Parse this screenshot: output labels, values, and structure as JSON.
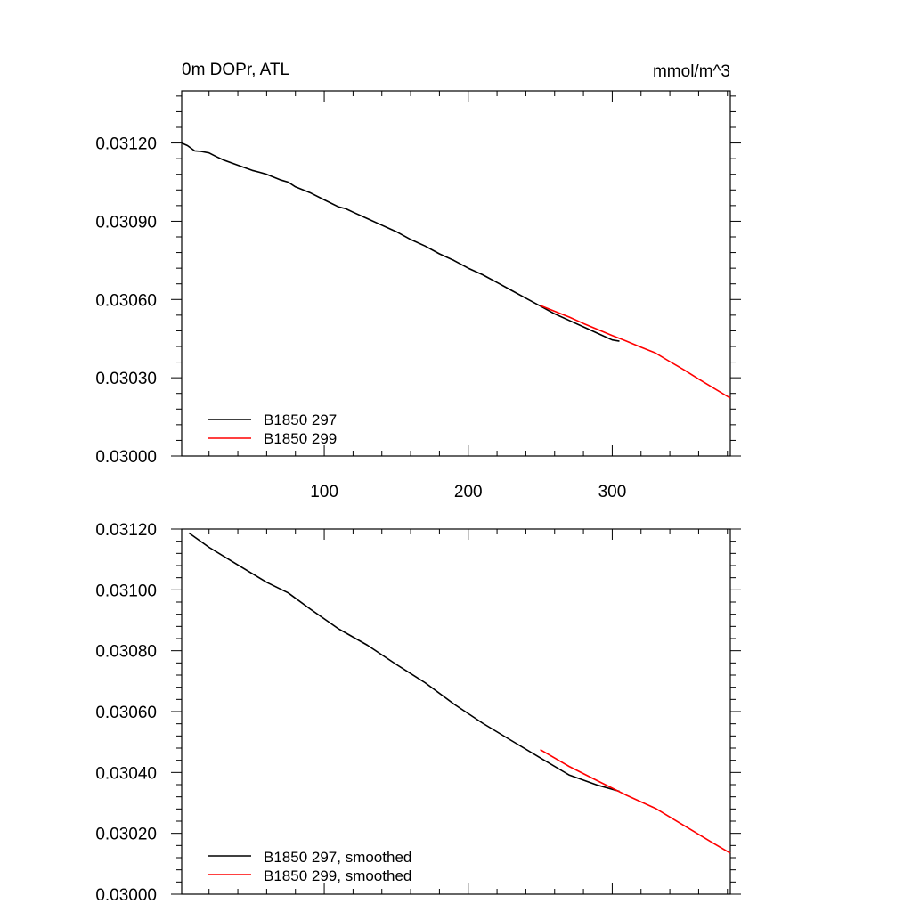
{
  "chart_data": [
    {
      "type": "line",
      "title": "0m DOPr, ATL",
      "units": "mmol/m^3",
      "xlim": [
        1,
        382
      ],
      "ylim": [
        0.03,
        0.0314
      ],
      "xticks": [
        100,
        200,
        300
      ],
      "xtick_labels": [
        "100",
        "200",
        "300"
      ],
      "yticks": [
        0.03,
        0.0303,
        0.0306,
        0.0309,
        0.0312
      ],
      "ytick_labels": [
        "0.03000",
        "0.03030",
        "0.03060",
        "0.03090",
        "0.03120"
      ],
      "grid": false,
      "legend_position": "bottom-left",
      "series": [
        {
          "name": "B1850 297",
          "color": "#000000",
          "x": [
            1,
            5,
            10,
            14,
            20,
            25,
            30,
            40,
            50,
            55,
            60,
            70,
            75,
            80,
            90,
            100,
            110,
            115,
            120,
            130,
            140,
            150,
            160,
            170,
            180,
            190,
            200,
            210,
            220,
            230,
            240,
            250,
            260,
            270,
            280,
            290,
            300,
            305
          ],
          "y": [
            0.0312,
            0.03119,
            0.03117,
            0.031168,
            0.031162,
            0.031148,
            0.031135,
            0.031115,
            0.031095,
            0.031088,
            0.03108,
            0.031058,
            0.03105,
            0.031032,
            0.03101,
            0.030982,
            0.030955,
            0.030948,
            0.030935,
            0.03091,
            0.030885,
            0.03086,
            0.03083,
            0.030805,
            0.030775,
            0.03075,
            0.03072,
            0.030695,
            0.030665,
            0.030635,
            0.030605,
            0.030575,
            0.030545,
            0.03052,
            0.030495,
            0.03047,
            0.030445,
            0.03044
          ]
        },
        {
          "name": "B1850 299",
          "color": "#ff0000",
          "x": [
            250,
            260,
            270,
            280,
            290,
            300,
            310,
            320,
            330,
            340,
            350,
            360,
            370,
            382
          ],
          "y": [
            0.030577,
            0.030555,
            0.030533,
            0.030508,
            0.030485,
            0.030462,
            0.03044,
            0.030417,
            0.030395,
            0.030362,
            0.03033,
            0.030295,
            0.030262,
            0.030222
          ]
        }
      ]
    },
    {
      "type": "line",
      "xlim": [
        1,
        382
      ],
      "ylim": [
        0.03,
        0.0312
      ],
      "xticks": [
        100,
        200,
        300
      ],
      "yticks": [
        0.03,
        0.0302,
        0.0304,
        0.0306,
        0.0308,
        0.031,
        0.0312
      ],
      "ytick_labels": [
        "0.03000",
        "0.03020",
        "0.03040",
        "0.03060",
        "0.03080",
        "0.03100",
        "0.03120"
      ],
      "grid": false,
      "legend_position": "bottom-left",
      "series": [
        {
          "name": "B1850 297, smoothed",
          "color": "#000000",
          "x": [
            6,
            20,
            40,
            60,
            75,
            90,
            110,
            130,
            150,
            170,
            190,
            210,
            230,
            250,
            270,
            290,
            305
          ],
          "y": [
            0.031187,
            0.03114,
            0.031082,
            0.031025,
            0.03099,
            0.030938,
            0.030872,
            0.030818,
            0.030755,
            0.030695,
            0.030625,
            0.030562,
            0.030505,
            0.030448,
            0.030392,
            0.030358,
            0.030338
          ]
        },
        {
          "name": "B1850 299, smoothed",
          "color": "#ff0000",
          "x": [
            250,
            270,
            290,
            310,
            330,
            350,
            370,
            382
          ],
          "y": [
            0.030475,
            0.03042,
            0.030372,
            0.030325,
            0.030282,
            0.030225,
            0.030168,
            0.030135
          ]
        }
      ]
    }
  ]
}
